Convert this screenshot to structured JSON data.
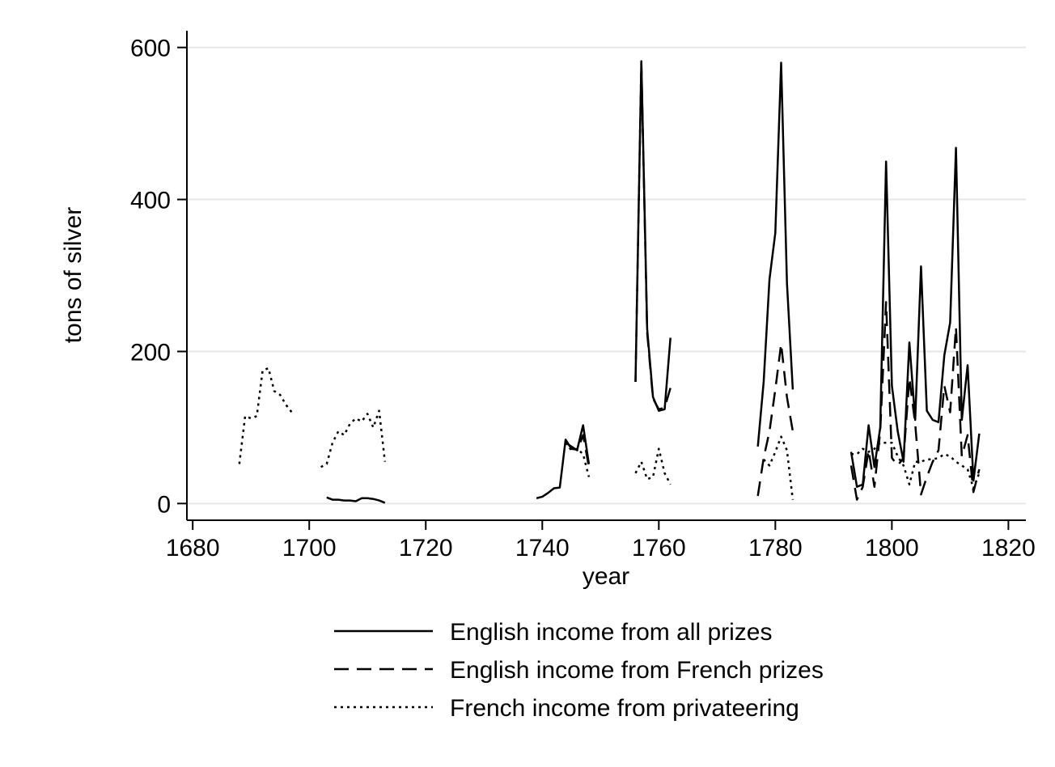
{
  "chart_data": {
    "type": "line",
    "title": "",
    "xlabel": "year",
    "ylabel": "tons of silver",
    "xlim": [
      1679,
      1823
    ],
    "ylim": [
      -22,
      622
    ],
    "xticks": [
      1680,
      1700,
      1720,
      1740,
      1760,
      1780,
      1800,
      1820
    ],
    "yticks": [
      0,
      200,
      400,
      600
    ],
    "grid": "horizontal",
    "legend_position": "bottom",
    "series": [
      {
        "name": "English income from all prizes",
        "dash": "solid",
        "segments": [
          [
            [
              1703,
              8
            ],
            [
              1704,
              5
            ],
            [
              1705,
              5
            ],
            [
              1706,
              4
            ],
            [
              1707,
              4
            ],
            [
              1708,
              3
            ],
            [
              1709,
              7
            ],
            [
              1710,
              7
            ],
            [
              1711,
              6
            ],
            [
              1712,
              4
            ],
            [
              1713,
              1
            ]
          ],
          [
            [
              1739,
              7
            ],
            [
              1740,
              9
            ],
            [
              1741,
              14
            ],
            [
              1742,
              20
            ],
            [
              1743,
              21
            ],
            [
              1744,
              84
            ],
            [
              1745,
              72
            ],
            [
              1746,
              71
            ],
            [
              1747,
              103
            ],
            [
              1748,
              52
            ]
          ],
          [
            [
              1756,
              160
            ],
            [
              1757,
              582
            ],
            [
              1758,
              230
            ],
            [
              1759,
              140
            ],
            [
              1760,
              122
            ],
            [
              1761,
              124
            ],
            [
              1762,
              218
            ]
          ],
          [
            [
              1777,
              75
            ],
            [
              1778,
              160
            ],
            [
              1779,
              295
            ],
            [
              1780,
              356
            ],
            [
              1781,
              580
            ],
            [
              1782,
              290
            ],
            [
              1783,
              150
            ]
          ],
          [
            [
              1793,
              68
            ],
            [
              1794,
              22
            ],
            [
              1795,
              25
            ],
            [
              1796,
              103
            ],
            [
              1797,
              48
            ],
            [
              1798,
              100
            ],
            [
              1799,
              450
            ],
            [
              1800,
              155
            ],
            [
              1801,
              95
            ],
            [
              1802,
              55
            ],
            [
              1803,
              212
            ],
            [
              1804,
              110
            ],
            [
              1805,
              312
            ],
            [
              1806,
              122
            ],
            [
              1807,
              110
            ],
            [
              1808,
              107
            ],
            [
              1809,
              195
            ],
            [
              1810,
              238
            ],
            [
              1811,
              468
            ],
            [
              1812,
              110
            ],
            [
              1813,
              182
            ],
            [
              1814,
              30
            ],
            [
              1815,
              92
            ]
          ]
        ]
      },
      {
        "name": "English income from French prizes",
        "dash": "dashed",
        "segments": [
          [
            [
              1744,
              80
            ],
            [
              1745,
              75
            ],
            [
              1746,
              70
            ],
            [
              1747,
              90
            ],
            [
              1748,
              48
            ]
          ],
          [
            [
              1756,
              160
            ],
            [
              1757,
              580
            ],
            [
              1758,
              225
            ],
            [
              1759,
              138
            ],
            [
              1760,
              124
            ],
            [
              1761,
              126
            ],
            [
              1762,
              152
            ]
          ],
          [
            [
              1777,
              10
            ],
            [
              1778,
              60
            ],
            [
              1779,
              95
            ],
            [
              1780,
              150
            ],
            [
              1781,
              210
            ],
            [
              1782,
              140
            ],
            [
              1783,
              95
            ]
          ],
          [
            [
              1793,
              50
            ],
            [
              1794,
              5
            ],
            [
              1795,
              22
            ],
            [
              1796,
              70
            ],
            [
              1797,
              22
            ],
            [
              1798,
              95
            ],
            [
              1799,
              265
            ],
            [
              1800,
              60
            ],
            [
              1801,
              50
            ],
            [
              1802,
              60
            ],
            [
              1803,
              165
            ],
            [
              1804,
              105
            ],
            [
              1805,
              12
            ],
            [
              1806,
              35
            ],
            [
              1807,
              55
            ],
            [
              1808,
              70
            ],
            [
              1809,
              155
            ],
            [
              1810,
              120
            ],
            [
              1811,
              232
            ],
            [
              1812,
              62
            ],
            [
              1813,
              90
            ],
            [
              1814,
              15
            ],
            [
              1815,
              45
            ]
          ]
        ]
      },
      {
        "name": "French income from privateering",
        "dash": "dotted",
        "segments": [
          [
            [
              1688,
              52
            ],
            [
              1689,
              115
            ],
            [
              1690,
              112
            ],
            [
              1691,
              115
            ],
            [
              1692,
              175
            ],
            [
              1693,
              178
            ],
            [
              1694,
              148
            ],
            [
              1695,
              143
            ],
            [
              1696,
              130
            ],
            [
              1697,
              120
            ]
          ],
          [
            [
              1702,
              48
            ],
            [
              1703,
              52
            ],
            [
              1704,
              80
            ],
            [
              1705,
              95
            ],
            [
              1706,
              90
            ],
            [
              1707,
              105
            ],
            [
              1708,
              112
            ],
            [
              1709,
              108
            ],
            [
              1710,
              118
            ],
            [
              1711,
              100
            ],
            [
              1712,
              122
            ],
            [
              1713,
              55
            ]
          ],
          [
            [
              1744,
              80
            ],
            [
              1745,
              70
            ],
            [
              1746,
              72
            ],
            [
              1747,
              65
            ],
            [
              1748,
              35
            ]
          ],
          [
            [
              1756,
              40
            ],
            [
              1757,
              55
            ],
            [
              1758,
              32
            ],
            [
              1759,
              35
            ],
            [
              1760,
              72
            ],
            [
              1761,
              40
            ],
            [
              1762,
              25
            ]
          ],
          [
            [
              1778,
              58
            ],
            [
              1779,
              50
            ],
            [
              1780,
              68
            ],
            [
              1781,
              88
            ],
            [
              1782,
              70
            ],
            [
              1783,
              5
            ]
          ],
          [
            [
              1793,
              65
            ],
            [
              1794,
              65
            ],
            [
              1795,
              72
            ],
            [
              1796,
              68
            ],
            [
              1797,
              72
            ],
            [
              1798,
              80
            ],
            [
              1799,
              80
            ],
            [
              1800,
              80
            ],
            [
              1801,
              62
            ],
            [
              1802,
              50
            ],
            [
              1803,
              25
            ],
            [
              1804,
              55
            ],
            [
              1805,
              55
            ],
            [
              1806,
              58
            ],
            [
              1807,
              58
            ],
            [
              1808,
              60
            ],
            [
              1809,
              65
            ],
            [
              1810,
              62
            ],
            [
              1811,
              55
            ],
            [
              1812,
              50
            ],
            [
              1813,
              45
            ],
            [
              1814,
              20
            ],
            [
              1815,
              40
            ]
          ]
        ]
      }
    ]
  }
}
